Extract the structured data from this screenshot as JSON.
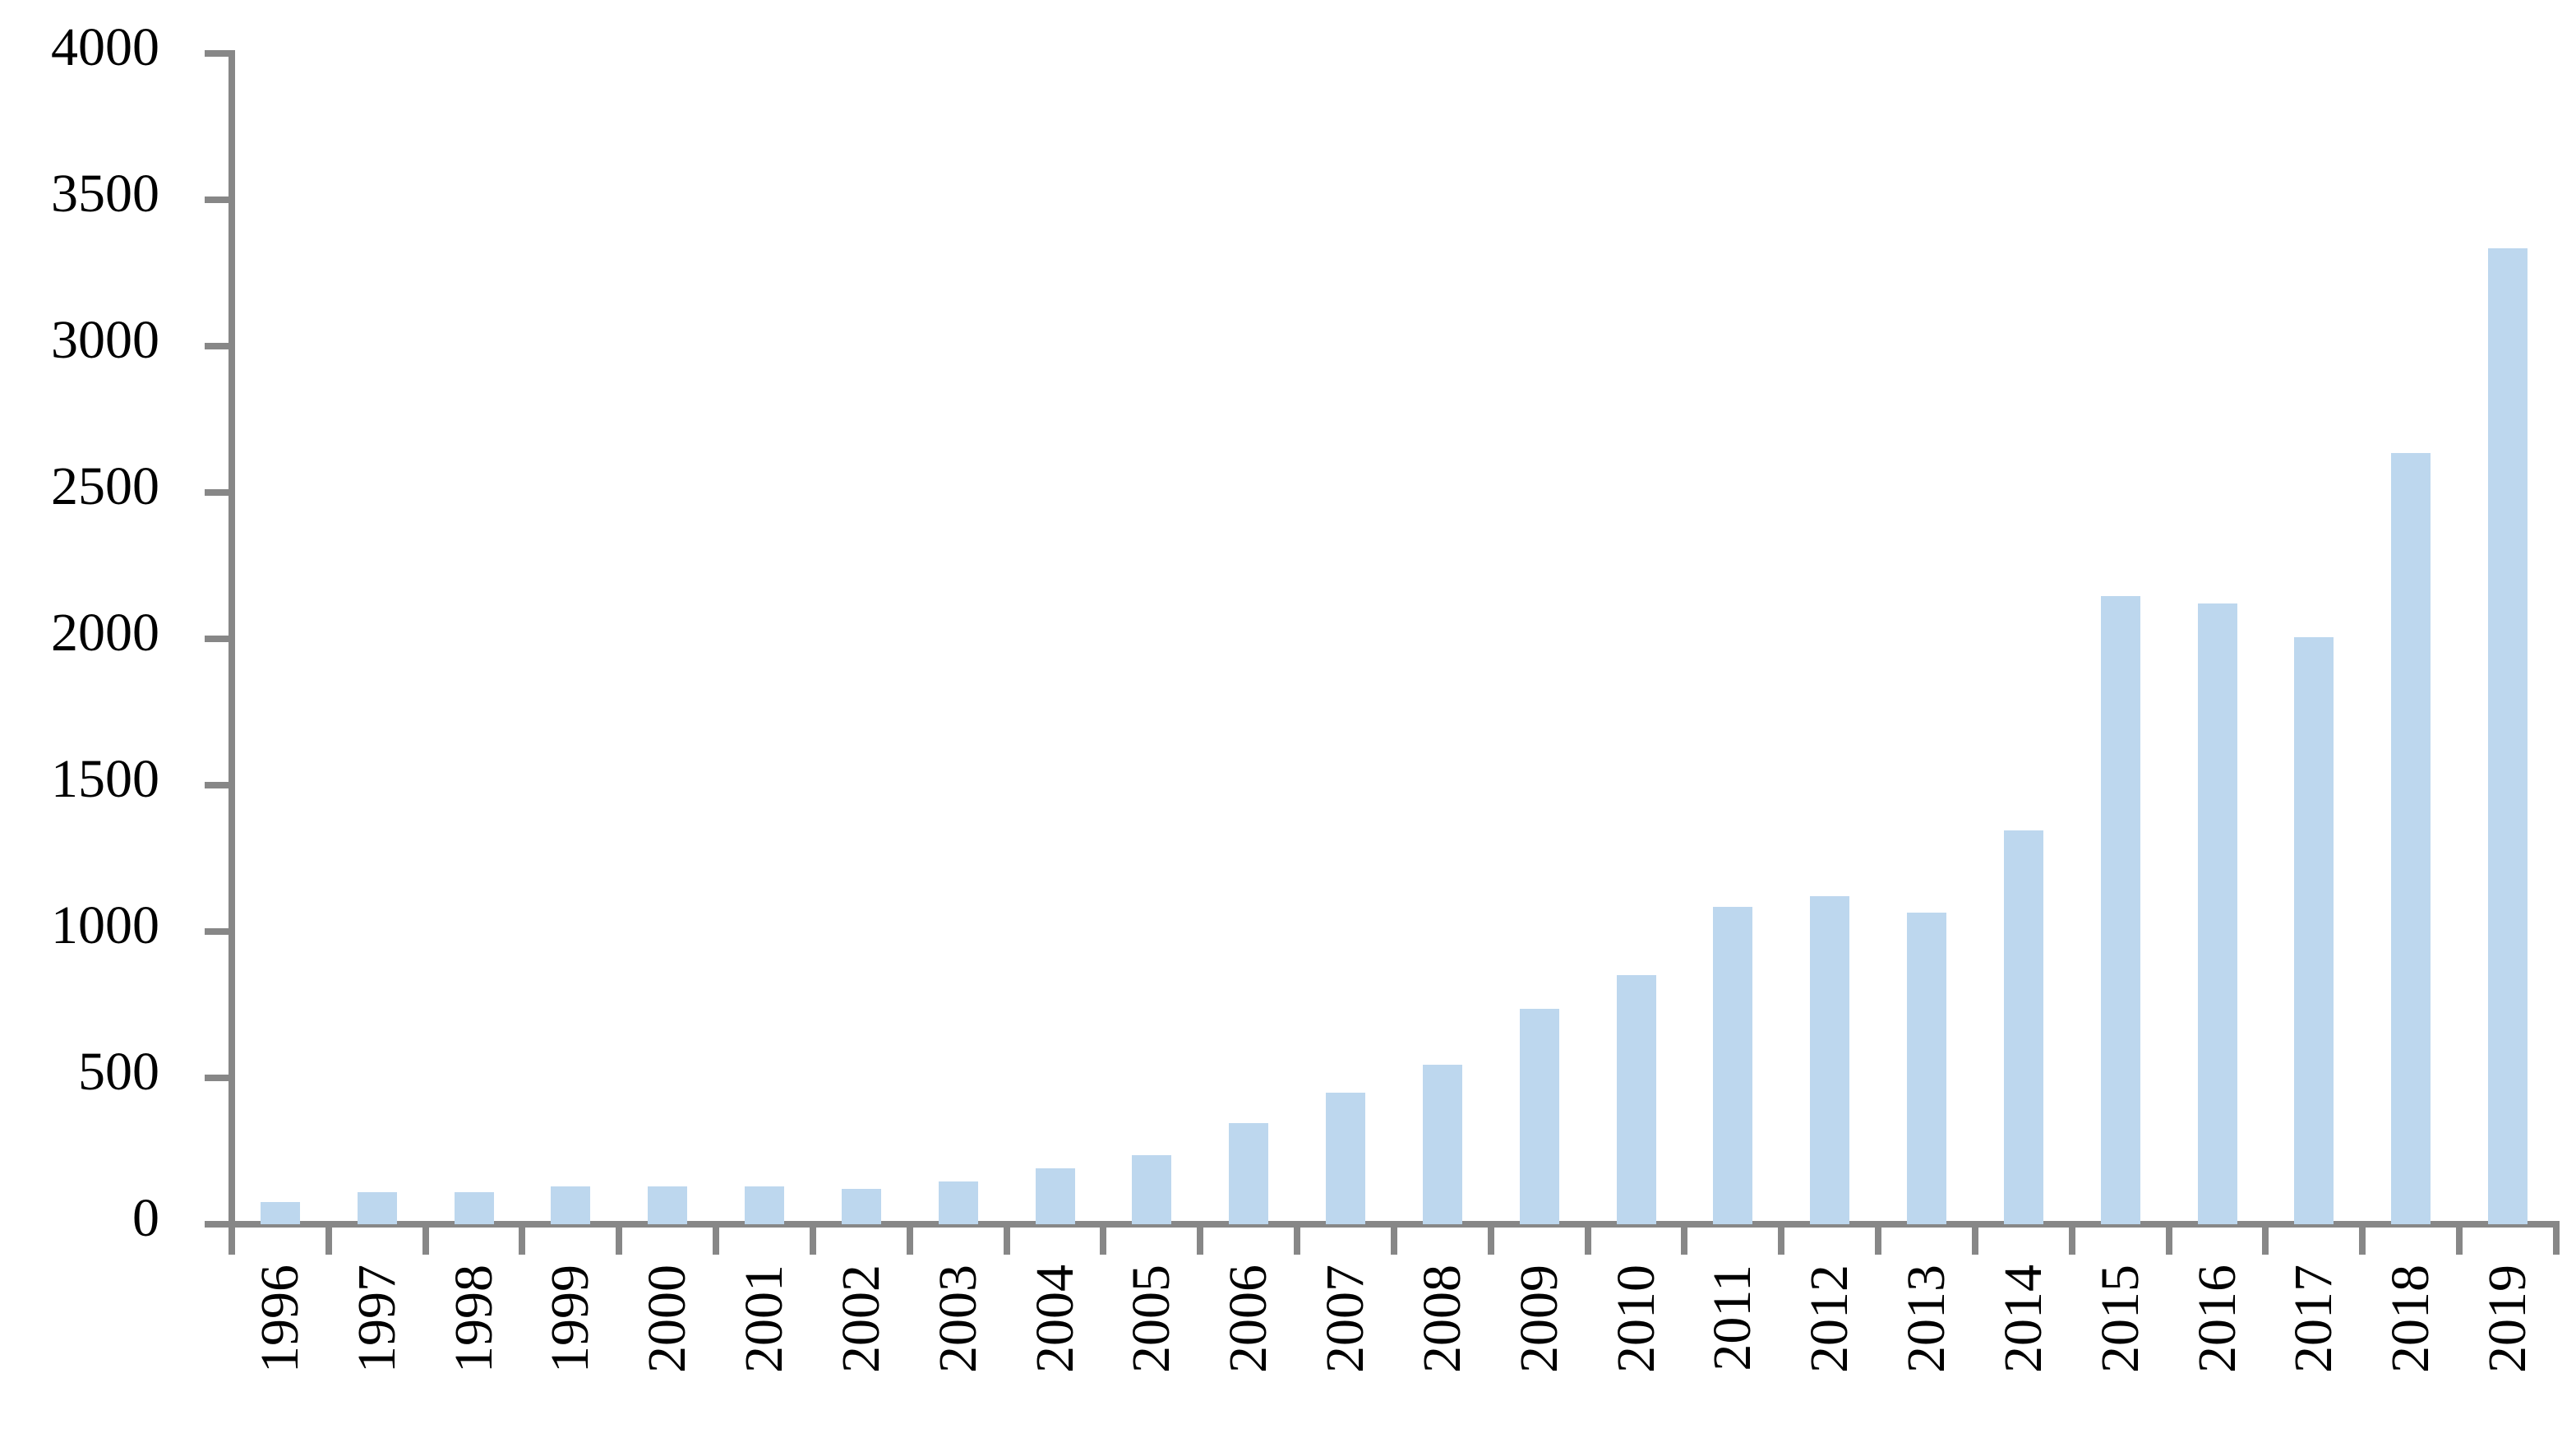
{
  "chart_data": {
    "type": "bar",
    "title": "",
    "xlabel": "",
    "ylabel": "",
    "categories": [
      "1996",
      "1997",
      "1998",
      "1999",
      "2000",
      "2001",
      "2002",
      "2003",
      "2004",
      "2005",
      "2006",
      "2007",
      "2008",
      "2009",
      "2010",
      "2011",
      "2012",
      "2013",
      "2014",
      "2015",
      "2016",
      "2017",
      "2018",
      "2019"
    ],
    "values": [
      75,
      110,
      110,
      130,
      130,
      130,
      120,
      145,
      190,
      235,
      345,
      450,
      545,
      735,
      850,
      1085,
      1120,
      1065,
      1345,
      2145,
      2120,
      2005,
      2635,
      3335
    ],
    "ylim": [
      0,
      4000
    ],
    "ytick_interval": 500,
    "yticks": [
      0,
      500,
      1000,
      1500,
      2000,
      2500,
      3000,
      3500,
      4000
    ],
    "ytick_labels": [
      "0",
      "500",
      "1000",
      "1500",
      "2000",
      "2500",
      "3000",
      "3500",
      "4000"
    ],
    "x_tick_label_rotation": 90,
    "grid": false,
    "legend": "none",
    "bar_color": "#BDD7EE",
    "axis_color": "#878787",
    "text_color": "#000000",
    "background_color": "#FFFFFF"
  }
}
